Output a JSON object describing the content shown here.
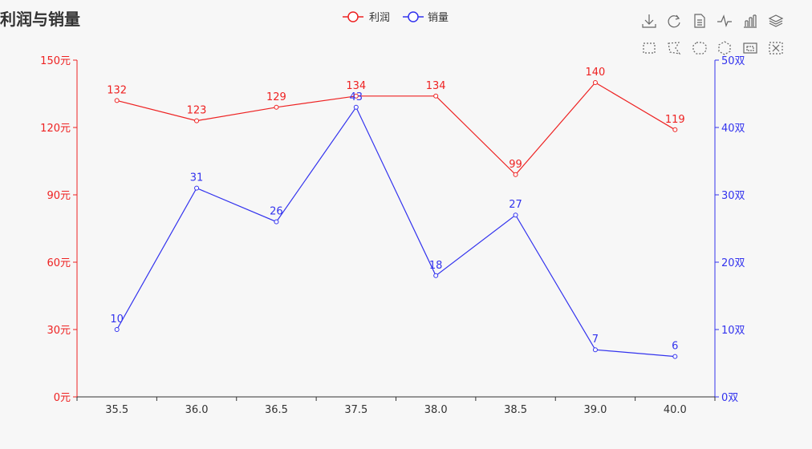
{
  "title": "利润与销量",
  "legend": [
    {
      "label": "利润",
      "color": "#ee2222"
    },
    {
      "label": "销量",
      "color": "#3333ee"
    }
  ],
  "toolbox": {
    "row1": [
      "download-icon",
      "refresh-icon",
      "data-view-icon",
      "line-chart-icon",
      "bar-chart-icon",
      "stack-icon"
    ],
    "row2": [
      "rect-select-icon",
      "polygon-select-icon",
      "keep-select-icon",
      "clear-select-icon",
      "zoom-icon",
      "zoom-reset-icon"
    ]
  },
  "colors": {
    "profit": "#ee2222",
    "sales": "#3333ee",
    "axis": "#333333"
  },
  "chart_data": {
    "type": "line",
    "title": "利润与销量",
    "categories": [
      "35.5",
      "36.0",
      "36.5",
      "37.5",
      "38.0",
      "38.5",
      "39.0",
      "40.0"
    ],
    "series": [
      {
        "name": "利润",
        "axis": "left",
        "values": [
          132,
          123,
          129,
          134,
          134,
          99,
          140,
          119
        ]
      },
      {
        "name": "销量",
        "axis": "right",
        "values": [
          10,
          31,
          26,
          43,
          18,
          27,
          7,
          6
        ]
      }
    ],
    "y_left": {
      "min": 0,
      "max": 150,
      "ticks": [
        "0元",
        "30元",
        "60元",
        "90元",
        "120元",
        "150元"
      ]
    },
    "y_right": {
      "min": 0,
      "max": 50,
      "ticks": [
        "0双",
        "10双",
        "20双",
        "30双",
        "40双",
        "50双"
      ]
    },
    "grid": false,
    "legend_position": "top-center"
  }
}
